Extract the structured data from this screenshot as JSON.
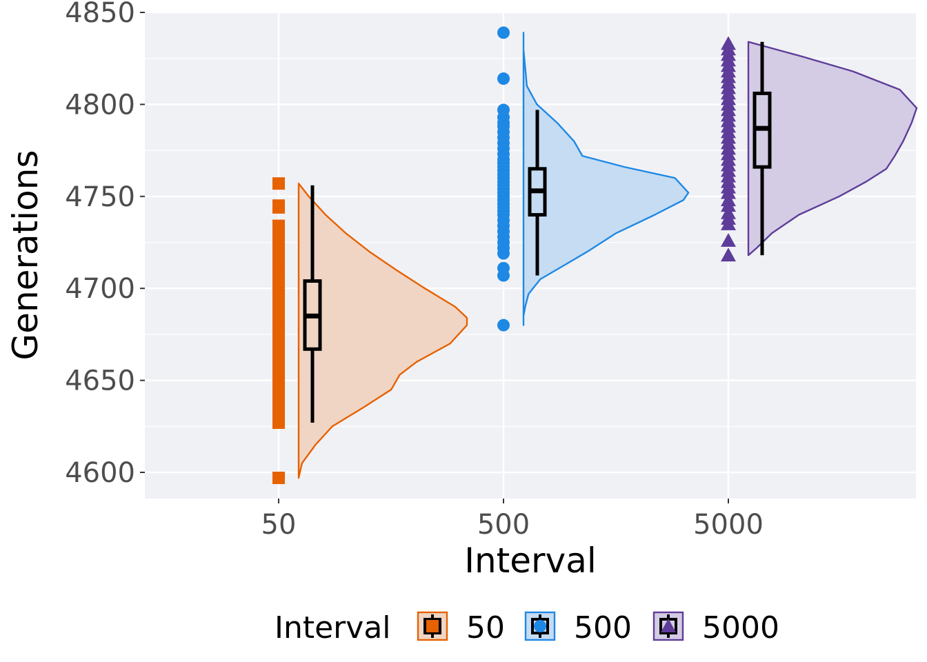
{
  "chart_data": {
    "type": "raincloud",
    "xlabel": "Interval",
    "ylabel": "Generations",
    "categories": [
      "50",
      "500",
      "5000"
    ],
    "ylim": [
      4585,
      4850
    ],
    "y_ticks": [
      "4600",
      "4650",
      "4700",
      "4750",
      "4800",
      "4850"
    ],
    "grid": true,
    "legend": {
      "title": "Interval",
      "position": "bottom",
      "entries": [
        "50",
        "500",
        "5000"
      ]
    },
    "series": [
      {
        "category": "50",
        "color": "#e66100",
        "fill": "#f0d5c4",
        "marker": "square",
        "box": {
          "min": 4627,
          "q1": 4667,
          "median": 4685,
          "q3": 4704,
          "max": 4756
        },
        "density": {
          "y": [
            4597,
            4605,
            4615,
            4625,
            4635,
            4645,
            4653,
            4660,
            4670,
            4680,
            4684,
            4690,
            4700,
            4710,
            4720,
            4730,
            4740,
            4750,
            4757
          ],
          "w": [
            0.0,
            0.02,
            0.1,
            0.2,
            0.38,
            0.55,
            0.6,
            0.7,
            0.9,
            1.0,
            1.0,
            0.93,
            0.75,
            0.58,
            0.42,
            0.28,
            0.16,
            0.06,
            0.0
          ]
        },
        "points": [
          4597,
          4627,
          4629,
          4632,
          4635,
          4638,
          4640,
          4642,
          4645,
          4648,
          4650,
          4652,
          4655,
          4657,
          4659,
          4661,
          4664,
          4666,
          4668,
          4670,
          4672,
          4674,
          4676,
          4678,
          4680,
          4682,
          4684,
          4686,
          4688,
          4690,
          4692,
          4694,
          4696,
          4698,
          4700,
          4702,
          4704,
          4706,
          4708,
          4710,
          4712,
          4714,
          4716,
          4718,
          4720,
          4722,
          4725,
          4728,
          4734,
          4744,
          4745,
          4757
        ]
      },
      {
        "category": "500",
        "color": "#1e88e5",
        "fill": "#c6dcf2",
        "marker": "circle",
        "box": {
          "min": 4707,
          "q1": 4740,
          "median": 4753,
          "q3": 4765,
          "max": 4797
        },
        "density": {
          "y": [
            4680,
            4685,
            4690,
            4697,
            4705,
            4713,
            4720,
            4730,
            4740,
            4748,
            4752,
            4760,
            4766,
            4772,
            4780,
            4790,
            4800,
            4810,
            4820,
            4830,
            4839
          ],
          "w": [
            0.0,
            0.0,
            0.01,
            0.03,
            0.1,
            0.25,
            0.38,
            0.55,
            0.78,
            0.95,
            0.98,
            0.9,
            0.6,
            0.35,
            0.3,
            0.2,
            0.08,
            0.02,
            0.01,
            0.0,
            0.0
          ]
        },
        "points": [
          4680,
          4707,
          4711,
          4719,
          4722,
          4725,
          4728,
          4731,
          4734,
          4737,
          4740,
          4742,
          4744,
          4746,
          4748,
          4750,
          4752,
          4754,
          4756,
          4758,
          4760,
          4762,
          4764,
          4766,
          4768,
          4770,
          4773,
          4776,
          4779,
          4782,
          4785,
          4788,
          4790,
          4793,
          4797,
          4814,
          4839
        ]
      },
      {
        "category": "5000",
        "color": "#5e3c99",
        "fill": "#d3cce4",
        "marker": "triangle",
        "box": {
          "min": 4718,
          "q1": 4766,
          "median": 4787,
          "q3": 4806,
          "max": 4834
        },
        "density": {
          "y": [
            4718,
            4722,
            4730,
            4740,
            4750,
            4758,
            4765,
            4772,
            4780,
            4790,
            4798,
            4808,
            4818,
            4826,
            4834
          ],
          "w": [
            0.0,
            0.05,
            0.14,
            0.3,
            0.54,
            0.7,
            0.82,
            0.87,
            0.92,
            0.97,
            1.0,
            0.9,
            0.62,
            0.32,
            0.0
          ]
        },
        "points": [
          4718,
          4726,
          4735,
          4738,
          4741,
          4745,
          4748,
          4752,
          4755,
          4758,
          4761,
          4764,
          4767,
          4770,
          4773,
          4776,
          4779,
          4782,
          4785,
          4788,
          4791,
          4794,
          4797,
          4800,
          4803,
          4806,
          4809,
          4812,
          4815,
          4818,
          4821,
          4824,
          4827,
          4830,
          4833
        ]
      }
    ]
  }
}
